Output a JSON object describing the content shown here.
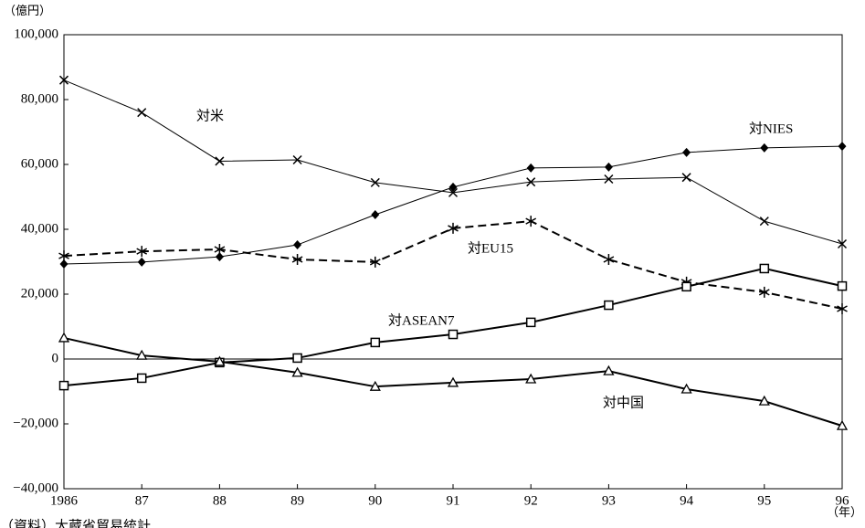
{
  "chart_data": {
    "type": "line",
    "y_unit": "（億円）",
    "x_unit": "（年）",
    "source": "（資料）大蔵省貿易統計",
    "categories": [
      "1986",
      "87",
      "88",
      "89",
      "90",
      "91",
      "92",
      "93",
      "94",
      "95",
      "96"
    ],
    "ylim": [
      -40000,
      100000
    ],
    "yticks": [
      {
        "value": -40000,
        "label": "−40,000"
      },
      {
        "value": -20000,
        "label": "−20,000"
      },
      0,
      {
        "value": 20000,
        "label": "20,000"
      },
      {
        "value": 40000,
        "label": "40,000"
      },
      {
        "value": 60000,
        "label": "60,000"
      },
      {
        "value": 80000,
        "label": "80,000"
      },
      {
        "value": 100000,
        "label": "100,000"
      }
    ],
    "series": [
      {
        "name": "対米",
        "color": "#000000",
        "marker": "x",
        "linestyle": "solid",
        "values": [
          86000,
          76000,
          61000,
          61400,
          54400,
          51300,
          54600,
          55500,
          56000,
          42500,
          35500
        ]
      },
      {
        "name": "対NIES",
        "color": "#000000",
        "marker": "diamond",
        "linestyle": "solid",
        "values": [
          29300,
          29900,
          31500,
          35200,
          44500,
          53000,
          58900,
          59200,
          63700,
          65100,
          65600
        ]
      },
      {
        "name": "対EU15",
        "color": "#000000",
        "marker": "asterisk",
        "linestyle": "dashed",
        "values": [
          31800,
          33200,
          33800,
          30700,
          29900,
          40300,
          42500,
          30700,
          23700,
          20600,
          15500
        ]
      },
      {
        "name": "対ASEAN7",
        "color": "#000000",
        "marker": "square",
        "linestyle": "solid",
        "values": [
          -8200,
          -5900,
          -1100,
          300,
          5100,
          7600,
          11300,
          16600,
          22300,
          27900,
          22500
        ]
      },
      {
        "name": "対中国",
        "color": "#000000",
        "marker": "triangle",
        "linestyle": "solid",
        "values": [
          6500,
          1100,
          -800,
          -4200,
          -8500,
          -7300,
          -6200,
          -3700,
          -9300,
          -13000,
          -20600
        ]
      }
    ]
  }
}
